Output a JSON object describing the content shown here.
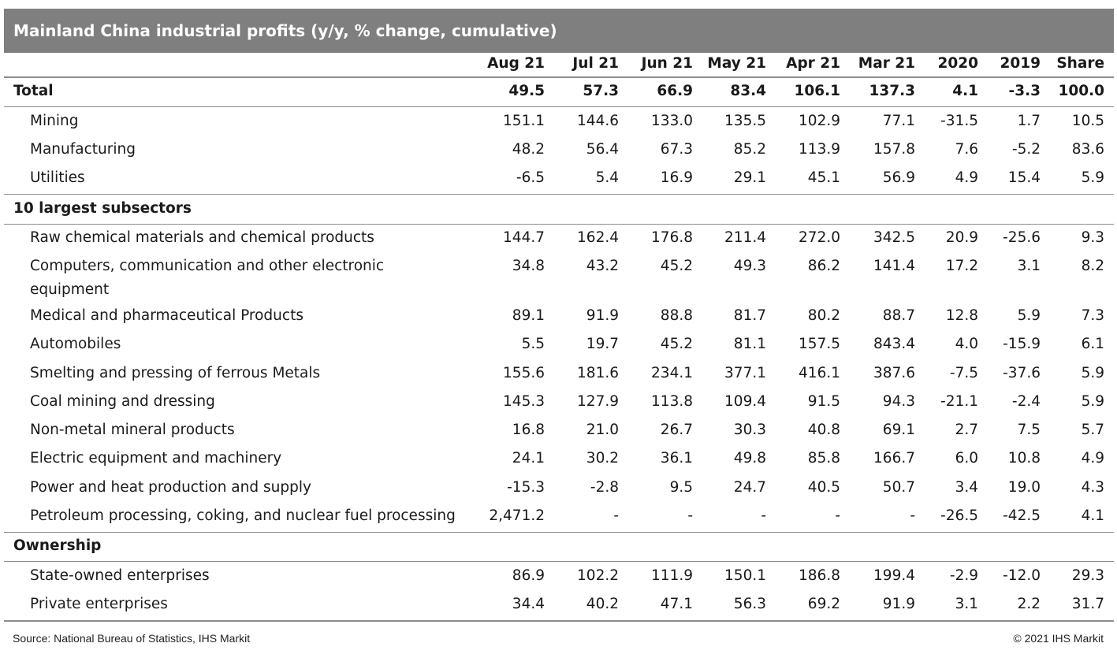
{
  "title": "Mainland China industrial profits (y/y, % change, cumulative)",
  "columns": [
    "Aug 21",
    "Jul 21",
    "Jun 21",
    "May 21",
    "Apr 21",
    "Mar 21",
    "2020",
    "2019",
    "Share"
  ],
  "total": {
    "label": "Total",
    "values": [
      "49.5",
      "57.3",
      "66.9",
      "83.4",
      "106.1",
      "137.3",
      "4.1",
      "-3.3",
      "100.0"
    ]
  },
  "sectors": [
    {
      "label": "Mining",
      "values": [
        "151.1",
        "144.6",
        "133.0",
        "135.5",
        "102.9",
        "77.1",
        "-31.5",
        "1.7",
        "10.5"
      ]
    },
    {
      "label": "Manufacturing",
      "values": [
        "48.2",
        "56.4",
        "67.3",
        "85.2",
        "113.9",
        "157.8",
        "7.6",
        "-5.2",
        "83.6"
      ]
    },
    {
      "label": "Utilities",
      "values": [
        "-6.5",
        "5.4",
        "16.9",
        "29.1",
        "45.1",
        "56.9",
        "4.9",
        "15.4",
        "5.9"
      ]
    }
  ],
  "subsectors_header": "10 largest subsectors",
  "subsectors": [
    {
      "label": "Raw chemical materials and chemical products",
      "values": [
        "144.7",
        "162.4",
        "176.8",
        "211.4",
        "272.0",
        "342.5",
        "20.9",
        "-25.6",
        "9.3"
      ]
    },
    {
      "label": "Computers, communication and other electronic",
      "label_line2": "equipment",
      "values": [
        "34.8",
        "43.2",
        "45.2",
        "49.3",
        "86.2",
        "141.4",
        "17.2",
        "3.1",
        "8.2"
      ]
    },
    {
      "label": "Medical and pharmaceutical Products",
      "values": [
        "89.1",
        "91.9",
        "88.8",
        "81.7",
        "80.2",
        "88.7",
        "12.8",
        "5.9",
        "7.3"
      ]
    },
    {
      "label": "Automobiles",
      "values": [
        "5.5",
        "19.7",
        "45.2",
        "81.1",
        "157.5",
        "843.4",
        "4.0",
        "-15.9",
        "6.1"
      ]
    },
    {
      "label": "Smelting and pressing of ferrous Metals",
      "values": [
        "155.6",
        "181.6",
        "234.1",
        "377.1",
        "416.1",
        "387.6",
        "-7.5",
        "-37.6",
        "5.9"
      ]
    },
    {
      "label": "Coal mining and dressing",
      "values": [
        "145.3",
        "127.9",
        "113.8",
        "109.4",
        "91.5",
        "94.3",
        "-21.1",
        "-2.4",
        "5.9"
      ]
    },
    {
      "label": "Non-metal mineral products",
      "values": [
        "16.8",
        "21.0",
        "26.7",
        "30.3",
        "40.8",
        "69.1",
        "2.7",
        "7.5",
        "5.7"
      ]
    },
    {
      "label": "Electric equipment and machinery",
      "values": [
        "24.1",
        "30.2",
        "36.1",
        "49.8",
        "85.8",
        "166.7",
        "6.0",
        "10.8",
        "4.9"
      ]
    },
    {
      "label": "Power and heat production and supply",
      "values": [
        "-15.3",
        "-2.8",
        "9.5",
        "24.7",
        "40.5",
        "50.7",
        "3.4",
        "19.0",
        "4.3"
      ]
    },
    {
      "label": "Petroleum processing, coking, and nuclear fuel processing",
      "values": [
        "2,471.2",
        "-",
        "-",
        "-",
        "-",
        "-",
        "-26.5",
        "-42.5",
        "4.1"
      ]
    }
  ],
  "ownership_header": "Ownership",
  "ownership": [
    {
      "label": "State-owned enterprises",
      "values": [
        "86.9",
        "102.2",
        "111.9",
        "150.1",
        "186.8",
        "199.4",
        "-2.9",
        "-12.0",
        "29.3"
      ]
    },
    {
      "label": "Private enterprises",
      "values": [
        "34.4",
        "40.2",
        "47.1",
        "56.3",
        "69.2",
        "91.9",
        "3.1",
        "2.2",
        "31.7"
      ]
    }
  ],
  "footer": {
    "source": "Source: National Bureau of Statistics, IHS Markit",
    "copyright": "© 2021 IHS Markit"
  },
  "colors": {
    "title_bg": "#7f7f7f",
    "title_text": "#ffffff",
    "rule": "#8c8c8c"
  }
}
